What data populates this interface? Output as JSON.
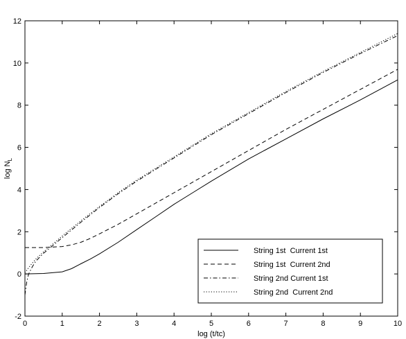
{
  "chart_data": {
    "type": "line",
    "title": "",
    "xlabel": "log (t/tc)",
    "ylabel": "log N",
    "ylabel_subscript": "L",
    "xlim": [
      0,
      10
    ],
    "ylim": [
      -2,
      12
    ],
    "xticks": [
      "0",
      "1",
      "2",
      "3",
      "4",
      "5",
      "6",
      "7",
      "8",
      "9",
      "10"
    ],
    "yticks": [
      "-2",
      "0",
      "2",
      "4",
      "6",
      "8",
      "10",
      "12"
    ],
    "grid": false,
    "legend_position": "lower-right",
    "series": [
      {
        "name": "String 1st  Current 1st",
        "style": "solid",
        "x": [
          0,
          0.5,
          1.0,
          1.25,
          1.5,
          1.75,
          2.0,
          2.5,
          3.0,
          3.5,
          4.0,
          4.5,
          5.0,
          6.0,
          7.0,
          8.0,
          9.0,
          10.0
        ],
        "y": [
          0.0,
          0.02,
          0.1,
          0.25,
          0.48,
          0.7,
          0.95,
          1.5,
          2.1,
          2.7,
          3.3,
          3.85,
          4.4,
          5.45,
          6.4,
          7.35,
          8.25,
          9.2
        ]
      },
      {
        "name": "String 1st  Current 2nd",
        "style": "dashed",
        "x": [
          0,
          0.5,
          1.0,
          1.25,
          1.5,
          1.75,
          2.0,
          2.5,
          3.0,
          3.5,
          4.0,
          4.5,
          5.0,
          6.0,
          7.0,
          8.0,
          9.0,
          10.0
        ],
        "y": [
          1.25,
          1.25,
          1.3,
          1.38,
          1.5,
          1.68,
          1.9,
          2.35,
          2.85,
          3.35,
          3.85,
          4.35,
          4.85,
          5.85,
          6.85,
          7.8,
          8.75,
          9.7
        ]
      },
      {
        "name": "String 2nd Current 1st",
        "style": "dashdot",
        "x": [
          0.0,
          0.05,
          0.1,
          0.2,
          0.3,
          0.5,
          0.75,
          1.0,
          1.5,
          2.0,
          2.5,
          3.0,
          4.0,
          5.0,
          6.0,
          7.0,
          8.0,
          9.0,
          10.0
        ],
        "y": [
          -1.0,
          -0.35,
          0.0,
          0.35,
          0.62,
          0.98,
          1.35,
          1.72,
          2.45,
          3.15,
          3.8,
          4.4,
          5.5,
          6.6,
          7.6,
          8.6,
          9.55,
          10.45,
          11.3
        ]
      },
      {
        "name": "String 2nd  Current 2nd",
        "style": "dotted",
        "x": [
          0.0,
          0.1,
          0.2,
          0.3,
          0.5,
          0.75,
          1.0,
          1.5,
          2.0,
          2.5,
          3.0,
          4.0,
          5.0,
          6.0,
          7.0,
          8.0,
          9.0,
          10.0
        ],
        "y": [
          0.05,
          0.3,
          0.52,
          0.72,
          1.05,
          1.42,
          1.8,
          2.52,
          3.2,
          3.85,
          4.45,
          5.55,
          6.65,
          7.65,
          8.65,
          9.6,
          10.5,
          11.4
        ]
      }
    ]
  }
}
